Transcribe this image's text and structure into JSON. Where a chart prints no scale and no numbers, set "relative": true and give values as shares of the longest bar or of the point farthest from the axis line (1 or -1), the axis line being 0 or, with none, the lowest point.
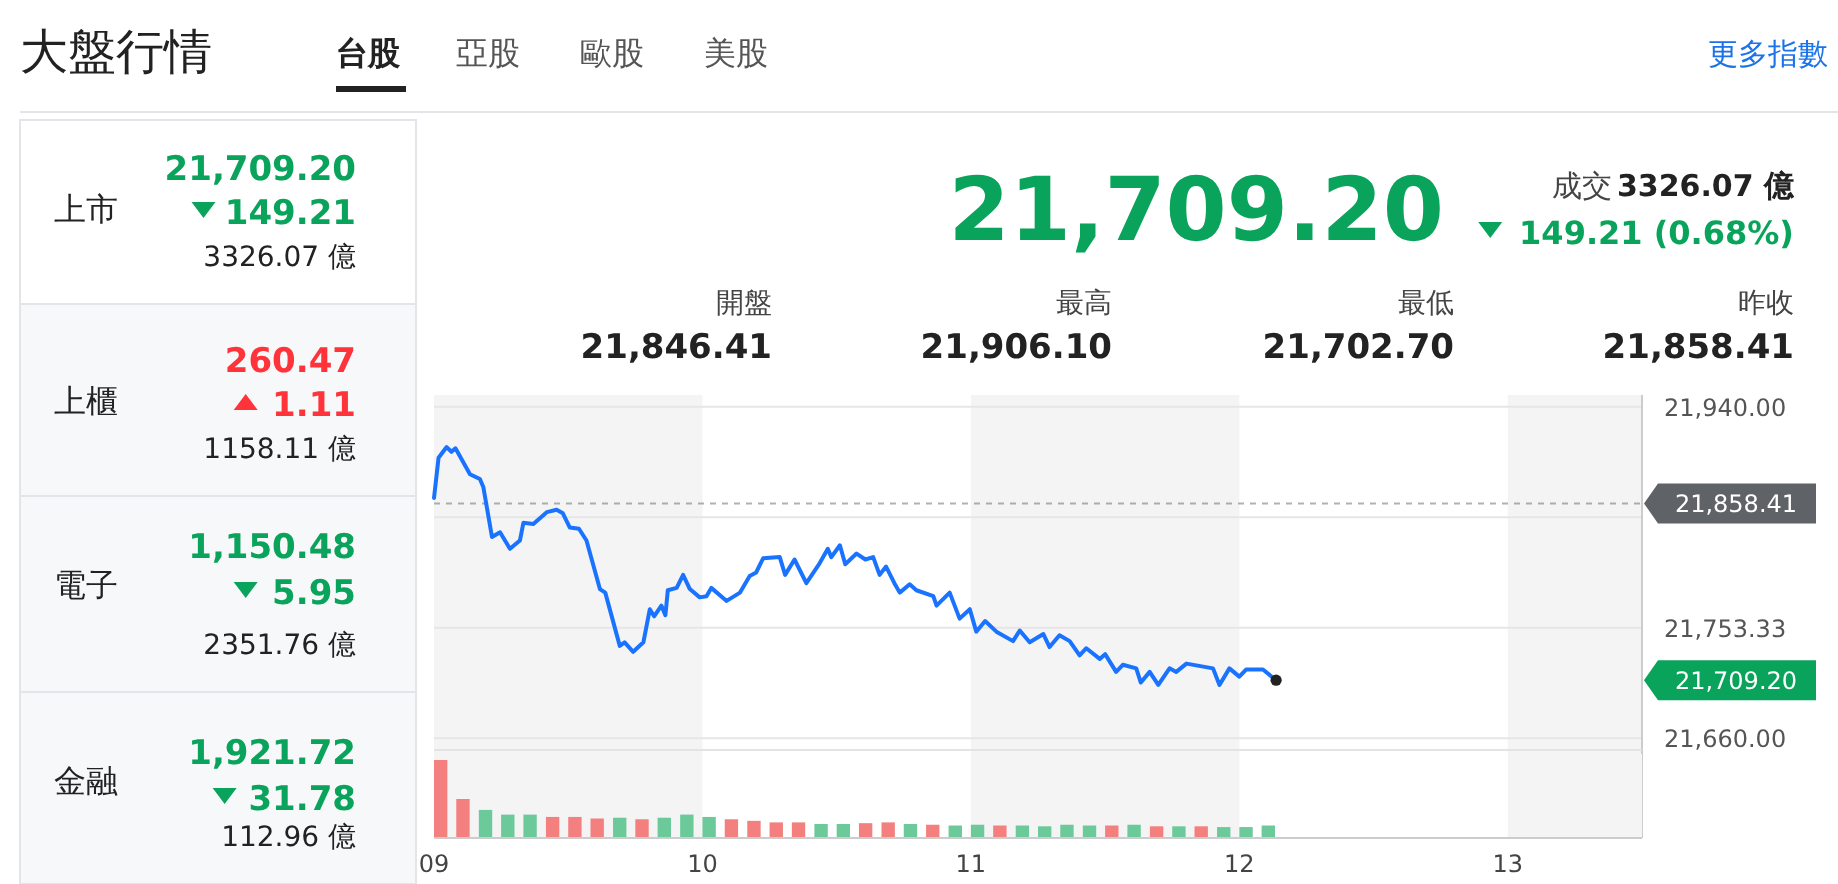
{
  "chart_data": [
    {
      "type": "other",
      "title": "大盤行情",
      "annotations": [
        "台股",
        "亞股",
        "歐股",
        "美股",
        "更多指數",
        "上市",
        "21,709.20",
        "149.21",
        "3326.07 億",
        "上櫃",
        "260.47",
        "1.11",
        "1158.11 億",
        "電子",
        "1,150.48",
        "5.95",
        "2351.76 億",
        "金融",
        "1,921.72",
        "31.78",
        "112.96 億",
        "21,709.20",
        "成交",
        "3326.07 億",
        "149.21 (0.68%)",
        "開盤",
        "21,846.41",
        "最高",
        "21,906.10",
        "最低",
        "21,702.70",
        "昨收",
        "21,858.41"
      ]
    },
    {
      "type": "line",
      "xlim": [
        9,
        13.5
      ],
      "ylim": [
        21650,
        21950
      ],
      "yticks": [
        {
          "value": 21660,
          "label": "21,660.00"
        },
        {
          "value": 21753.33,
          "label": "21,753.33"
        },
        {
          "value": 21846.67,
          "label": null
        },
        {
          "value": 21940,
          "label": "21,940.00"
        }
      ],
      "tick_labels": "y",
      "grid": "y",
      "bands": [
        {
          "axis": "x",
          "from": 9,
          "to": 10,
          "color": "#f4f4f4"
        },
        {
          "axis": "x",
          "from": 11,
          "to": 12,
          "color": "#f4f4f4"
        },
        {
          "axis": "x",
          "from": 13,
          "to": 13.5,
          "color": "#f4f4f4"
        }
      ],
      "ref_lines": [
        {
          "axis": "y",
          "value": 21858.41,
          "label": "21,858.41",
          "color": "#5f6368",
          "line_style": "dashed"
        }
      ],
      "annotations": [
        "21,709.20"
      ],
      "series": [
        {
          "color": "#1a73ff",
          "x": [
            9.0,
            9.017,
            9.047,
            9.065,
            9.08,
            9.134,
            9.171,
            9.184,
            9.216,
            9.246,
            9.283,
            9.32,
            9.333,
            9.37,
            9.42,
            9.457,
            9.48,
            9.506,
            9.54,
            9.568,
            9.618,
            9.638,
            9.692,
            9.71,
            9.742,
            9.78,
            9.804,
            9.82,
            9.847,
            9.862,
            9.871,
            9.904,
            9.928,
            9.953,
            9.99,
            10.015,
            10.033,
            10.09,
            10.14,
            10.176,
            10.2,
            10.226,
            10.288,
            10.308,
            10.343,
            10.387,
            10.437,
            10.467,
            10.48,
            10.512,
            10.532,
            10.574,
            10.607,
            10.636,
            10.66,
            10.684,
            10.715,
            10.735,
            10.772,
            10.797,
            10.86,
            10.872,
            10.921,
            10.958,
            10.996,
            11.02,
            11.053,
            11.095,
            11.157,
            11.182,
            11.219,
            11.27,
            11.293,
            11.33,
            11.368,
            11.405,
            11.43,
            11.48,
            11.5,
            11.541,
            11.566,
            11.616,
            11.633,
            11.666,
            11.698,
            11.74,
            11.765,
            11.803,
            11.902,
            11.926,
            11.963,
            12.0,
            12.025,
            12.088,
            12.137
          ],
          "values": [
            21863,
            21897,
            21906,
            21902,
            21905,
            21883,
            21879,
            21872,
            21830,
            21834,
            21820,
            21827,
            21842,
            21841,
            21851,
            21853,
            21850,
            21838,
            21837,
            21827,
            21786,
            21783,
            21738,
            21741,
            21733,
            21741,
            21769,
            21763,
            21772,
            21764,
            21785,
            21787,
            21798,
            21786,
            21779,
            21780,
            21787,
            21776,
            21783,
            21797,
            21800,
            21812,
            21813,
            21798,
            21811,
            21791,
            21808,
            21820,
            21813,
            21823,
            21807,
            21816,
            21811,
            21813,
            21798,
            21805,
            21791,
            21783,
            21790,
            21785,
            21780,
            21772,
            21783,
            21761,
            21769,
            21750,
            21759,
            21750,
            21742,
            21751,
            21741,
            21748,
            21737,
            21747,
            21742,
            21730,
            21736,
            21727,
            21731,
            21716,
            21722,
            21719,
            21707,
            21716,
            21705,
            21719,
            21716,
            21723,
            21719,
            21705,
            21719,
            21712,
            21718,
            21718,
            21709
          ]
        }
      ]
    },
    {
      "type": "bar",
      "relative": true,
      "xlim": [
        9,
        13.5
      ],
      "xticks": [
        {
          "value": 9,
          "label": "09"
        },
        {
          "value": 10,
          "label": "10"
        },
        {
          "value": 11,
          "label": "11"
        },
        {
          "value": 12,
          "label": "12"
        },
        {
          "value": 13,
          "label": "13"
        }
      ],
      "tick_labels": "x",
      "bands": [
        {
          "axis": "x",
          "from": 9,
          "to": 10,
          "color": "#f4f4f4"
        },
        {
          "axis": "x",
          "from": 11,
          "to": 12,
          "color": "#f4f4f4"
        },
        {
          "axis": "x",
          "from": 13,
          "to": 13.5,
          "color": "#f4f4f4"
        }
      ],
      "x": [
        9.0,
        9.083,
        9.167,
        9.25,
        9.333,
        9.417,
        9.5,
        9.583,
        9.667,
        9.75,
        9.833,
        9.917,
        10.0,
        10.083,
        10.167,
        10.25,
        10.333,
        10.417,
        10.5,
        10.583,
        10.667,
        10.75,
        10.833,
        10.917,
        11.0,
        11.083,
        11.167,
        11.25,
        11.333,
        11.417,
        11.5,
        11.583,
        11.667,
        11.75,
        11.833,
        11.917,
        12.0,
        12.083
      ],
      "values": [
        1,
        0.5,
        0.36,
        0.3,
        0.3,
        0.27,
        0.27,
        0.25,
        0.26,
        0.24,
        0.26,
        0.3,
        0.27,
        0.24,
        0.22,
        0.2,
        0.2,
        0.18,
        0.18,
        0.19,
        0.2,
        0.18,
        0.17,
        0.16,
        0.17,
        0.16,
        0.16,
        0.15,
        0.17,
        0.16,
        0.16,
        0.17,
        0.15,
        0.15,
        0.15,
        0.14,
        0.14,
        0.16
      ],
      "colors": [
        "#f47f7f",
        "#f47f7f",
        "#6cc99a",
        "#6cc99a",
        "#6cc99a",
        "#f47f7f",
        "#f47f7f",
        "#f47f7f",
        "#6cc99a",
        "#f47f7f",
        "#6cc99a",
        "#6cc99a",
        "#6cc99a",
        "#f47f7f",
        "#f47f7f",
        "#f47f7f",
        "#f47f7f",
        "#6cc99a",
        "#6cc99a",
        "#f47f7f",
        "#f47f7f",
        "#6cc99a",
        "#f47f7f",
        "#6cc99a",
        "#6cc99a",
        "#f47f7f",
        "#6cc99a",
        "#6cc99a",
        "#6cc99a",
        "#6cc99a",
        "#f47f7f",
        "#6cc99a",
        "#f47f7f",
        "#6cc99a",
        "#f47f7f",
        "#6cc99a",
        "#6cc99a",
        "#6cc99a"
      ]
    }
  ]
}
